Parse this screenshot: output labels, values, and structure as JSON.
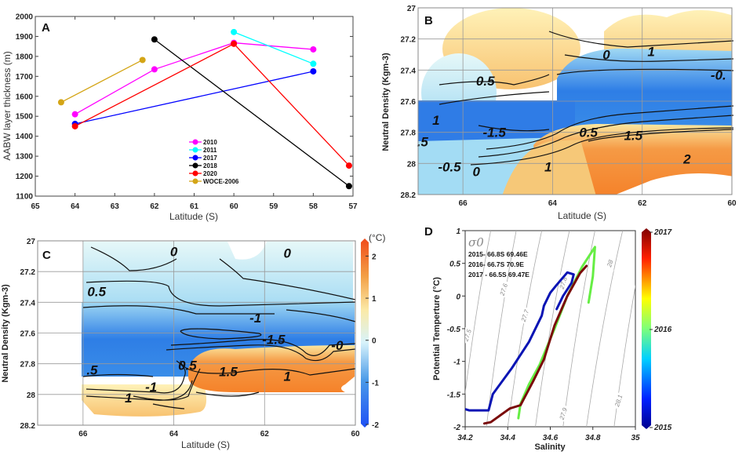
{
  "chart_data": [
    {
      "panel": "A",
      "type": "line",
      "xlabel": "Latitude (S)",
      "ylabel": "AABW layer thickness (m)",
      "xlim": [
        65,
        57
      ],
      "ylim": [
        1100,
        2000
      ],
      "xticks": [
        "65",
        "64",
        "63",
        "62",
        "61",
        "60",
        "59",
        "58",
        "57"
      ],
      "yticks": [
        "1100",
        "1200",
        "1300",
        "1400",
        "1500",
        "1600",
        "1700",
        "1800",
        "1900",
        "2000"
      ],
      "legend_position": "bottom-center",
      "series": [
        {
          "name": "2010",
          "color": "#ff00ff",
          "x": [
            64,
            62,
            60,
            58
          ],
          "y": [
            1510,
            1735,
            1868,
            1835
          ]
        },
        {
          "name": "2011",
          "color": "#00ffff",
          "x": [
            60,
            58
          ],
          "y": [
            1922,
            1763
          ]
        },
        {
          "name": "2017",
          "color": "#0000ff",
          "x": [
            64,
            58
          ],
          "y": [
            1462,
            1725
          ]
        },
        {
          "name": "2018",
          "color": "#000000",
          "x": [
            62,
            57.1
          ],
          "y": [
            1885,
            1150
          ]
        },
        {
          "name": "2020",
          "color": "#ff0000",
          "x": [
            64,
            60,
            57.1
          ],
          "y": [
            1450,
            1863,
            1253
          ]
        },
        {
          "name": "WOCE-2006",
          "color": "#d4a516",
          "x": [
            64.35,
            62.3
          ],
          "y": [
            1570,
            1782
          ]
        }
      ]
    },
    {
      "panel": "B",
      "type": "heatmap",
      "xlabel": "Latitude (S)",
      "ylabel": "Neutral Density (Kgm-3)",
      "xlim": [
        67,
        60
      ],
      "ylim": [
        27,
        28.2
      ],
      "xticks": [
        "66",
        "64",
        "62",
        "60"
      ],
      "yticks": [
        "27",
        "27.2",
        "27.4",
        "27.6",
        "27.8",
        "28",
        "28.2"
      ],
      "grid": true,
      "contour_labels": [
        {
          "text": "0.5",
          "lat": 65.5,
          "dens": 27.47
        },
        {
          "text": "1",
          "lat": 66.6,
          "dens": 27.72
        },
        {
          "text": "-1.5",
          "lat": 65.3,
          "dens": 27.8
        },
        {
          "text": ".5",
          "lat": 66.9,
          "dens": 27.86
        },
        {
          "text": "-0.5",
          "lat": 66.3,
          "dens": 28.02
        },
        {
          "text": "0",
          "lat": 65.7,
          "dens": 28.05
        },
        {
          "text": "1",
          "lat": 64.1,
          "dens": 28.02
        },
        {
          "text": "0.5",
          "lat": 63.2,
          "dens": 27.8
        },
        {
          "text": "1.5",
          "lat": 62.2,
          "dens": 27.82
        },
        {
          "text": "2",
          "lat": 61.0,
          "dens": 27.97
        },
        {
          "text": "1",
          "lat": 61.8,
          "dens": 27.28
        },
        {
          "text": "0",
          "lat": 62.8,
          "dens": 27.3
        },
        {
          "text": "-0.",
          "lat": 60.3,
          "dens": 27.43
        }
      ]
    },
    {
      "panel": "C",
      "type": "heatmap",
      "xlabel": "Latitude (S)",
      "ylabel": "Neutral Density (Kgm-3)",
      "xlim": [
        67,
        60
      ],
      "ylim": [
        27,
        28.2
      ],
      "xticks": [
        "66",
        "64",
        "62",
        "60"
      ],
      "yticks": [
        "27",
        "27.2",
        "27.4",
        "27.6",
        "27.8",
        "28",
        "28.2"
      ],
      "grid": true,
      "colorbar": {
        "unit": "(°C)",
        "ticks": [
          "2",
          "1",
          "0",
          "-1",
          "-2"
        ],
        "range": [
          -2,
          2.4
        ]
      },
      "contour_labels": [
        {
          "text": "0",
          "lat": 64.0,
          "dens": 27.07
        },
        {
          "text": "0",
          "lat": 61.5,
          "dens": 27.08
        },
        {
          "text": "0.5",
          "lat": 65.7,
          "dens": 27.33
        },
        {
          "text": "-1",
          "lat": 62.2,
          "dens": 27.5
        },
        {
          "text": "-1.5",
          "lat": 61.8,
          "dens": 27.64
        },
        {
          "text": "-0",
          "lat": 60.4,
          "dens": 27.68
        },
        {
          "text": ".5",
          "lat": 65.8,
          "dens": 27.84
        },
        {
          "text": "0.5",
          "lat": 63.7,
          "dens": 27.81
        },
        {
          "text": "1.5",
          "lat": 62.8,
          "dens": 27.85
        },
        {
          "text": "1",
          "lat": 61.5,
          "dens": 27.88
        },
        {
          "text": "-1",
          "lat": 64.5,
          "dens": 27.95
        },
        {
          "text": "1",
          "lat": 65.0,
          "dens": 28.02
        }
      ]
    },
    {
      "panel": "D",
      "type": "line",
      "xlabel": "Salinity",
      "ylabel": "Potential Temperture (°C)",
      "xlim": [
        34.2,
        35
      ],
      "ylim": [
        -2,
        1
      ],
      "xticks": [
        "34.2",
        "34.4",
        "34.6",
        "34.8",
        "35"
      ],
      "yticks": [
        "1",
        "0.5",
        "0",
        "-0.5",
        "-1",
        "-1.5",
        "-2"
      ],
      "title": "σ0",
      "annotations": [
        "2015- 66.8S 69.46E",
        "2016- 66.7S 70.9E",
        "2017 - 66.5S 69.47E"
      ],
      "colorbar": {
        "ticks": [
          "2017",
          "2016",
          "2015"
        ]
      },
      "isopycnals": [
        {
          "label": "27.5",
          "s_at_min_t": 34.18,
          "s_at_max_t": 34.32,
          "label_s": 34.21,
          "label_t": -0.6
        },
        {
          "label": "27.6",
          "s_at_min_t": 34.3,
          "s_at_max_t": 34.44,
          "label_s": 34.38,
          "label_t": 0.1
        },
        {
          "label": "27.7",
          "s_at_min_t": 34.4,
          "s_at_max_t": 34.56,
          "label_s": 34.48,
          "label_t": -0.3
        },
        {
          "label": "27.8",
          "s_at_min_t": 34.53,
          "s_at_max_t": 34.69,
          "label_s": 34.66,
          "label_t": 0.2
        },
        {
          "label": "27.9",
          "s_at_min_t": 34.66,
          "s_at_max_t": 34.81,
          "label_s": 34.66,
          "label_t": -1.8
        },
        {
          "label": "28",
          "s_at_min_t": 34.77,
          "s_at_max_t": 34.94,
          "label_s": 34.88,
          "label_t": 0.5
        },
        {
          "label": "28.1",
          "s_at_min_t": 34.9,
          "s_at_max_t": 35.05,
          "label_s": 34.92,
          "label_t": -1.6
        }
      ],
      "series": [
        {
          "name": "2015",
          "color": "#0a14b4",
          "x": [
            34.2,
            34.22,
            34.31,
            34.33,
            34.42,
            34.5,
            34.56,
            34.57,
            34.6,
            34.63,
            34.68,
            34.71,
            34.7,
            34.66,
            34.63
          ],
          "y": [
            -1.73,
            -1.75,
            -1.75,
            -1.5,
            -1.1,
            -0.7,
            -0.3,
            -0.15,
            0.05,
            0.17,
            0.36,
            0.33,
            0.2,
            0.0,
            -0.2
          ]
        },
        {
          "name": "2016",
          "color": "#66ee44",
          "x": [
            34.45,
            34.46,
            34.5,
            34.55,
            34.62,
            34.68,
            34.75,
            34.79,
            34.81,
            34.8,
            34.78
          ],
          "y": [
            -1.87,
            -1.65,
            -1.35,
            -1.05,
            -0.5,
            0.0,
            0.45,
            0.65,
            0.75,
            0.3,
            -0.1
          ]
        },
        {
          "name": "2017",
          "color": "#7a0a0a",
          "x": [
            34.29,
            34.32,
            34.41,
            34.46,
            34.52,
            34.57,
            34.62,
            34.68,
            34.74,
            34.77
          ],
          "y": [
            -1.95,
            -1.93,
            -1.72,
            -1.67,
            -1.3,
            -0.97,
            -0.45,
            0.0,
            0.35,
            0.46
          ]
        }
      ]
    }
  ],
  "panel_labels": {
    "a": "A",
    "b": "B",
    "c": "C",
    "d": "D"
  }
}
